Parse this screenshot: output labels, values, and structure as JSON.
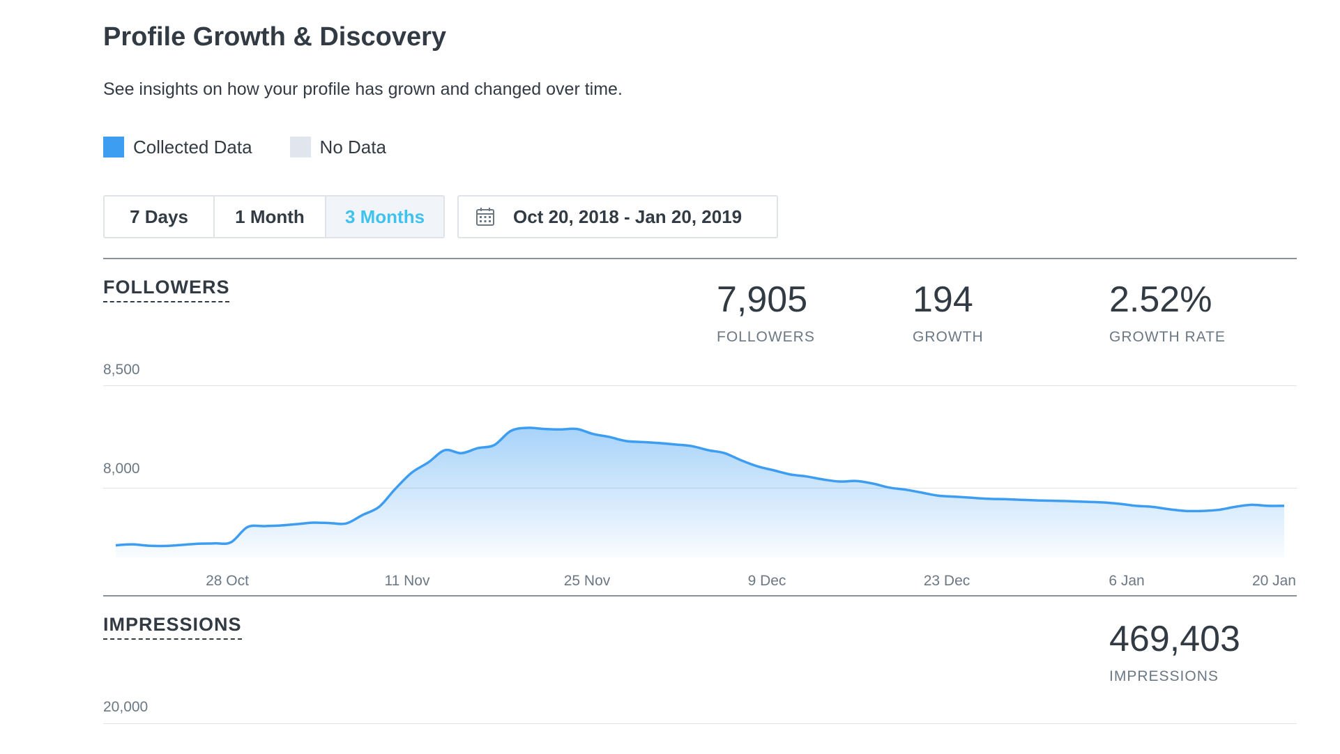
{
  "header": {
    "title": "Profile Growth & Discovery",
    "subtitle": "See insights on how your profile has grown and changed over time."
  },
  "legend": [
    {
      "label": "Collected Data",
      "color": "#3d9df1"
    },
    {
      "label": "No Data",
      "color": "#e1e6ee"
    }
  ],
  "range_buttons": [
    {
      "label": "7 Days",
      "active": false
    },
    {
      "label": "1 Month",
      "active": false
    },
    {
      "label": "3 Months",
      "active": true
    }
  ],
  "date_picker": {
    "icon": "calendar-icon",
    "label": "Oct 20, 2018 - Jan 20, 2019"
  },
  "followers": {
    "section_label": "FOLLOWERS",
    "stats": [
      {
        "value": "7,905",
        "label": "FOLLOWERS"
      },
      {
        "value": "194",
        "label": "GROWTH"
      },
      {
        "value": "2.52%",
        "label": "GROWTH RATE"
      }
    ],
    "y_ticks": [
      "8,500",
      "8,000"
    ]
  },
  "impressions": {
    "section_label": "IMPRESSIONS",
    "stats": [
      {
        "value": "469,403",
        "label": "IMPRESSIONS"
      }
    ],
    "y_ticks": [
      "20,000"
    ]
  },
  "colors": {
    "accent": "#3fc3ee",
    "line": "#3d9df1",
    "text": "#323b43",
    "muted": "#6b7884"
  },
  "chart_data": {
    "type": "area",
    "xlabel": "",
    "ylabel": "",
    "ylim": [
      7650,
      8500
    ],
    "x_ticks": [
      "28 Oct",
      "11 Nov",
      "25 Nov",
      "9 Dec",
      "23 Dec",
      "6 Jan",
      "20 Jan"
    ],
    "series": [
      {
        "values": [
          7710,
          7715,
          7708,
          7707,
          7712,
          7718,
          7720,
          7725,
          7800,
          7805,
          7808,
          7815,
          7822,
          7820,
          7818,
          7860,
          7900,
          7990,
          8070,
          8120,
          8180,
          8165,
          8190,
          8205,
          8275,
          8290,
          8285,
          8282,
          8285,
          8260,
          8245,
          8225,
          8220,
          8215,
          8208,
          8200,
          8180,
          8165,
          8130,
          8100,
          8080,
          8060,
          8050,
          8035,
          8025,
          8028,
          8015,
          7995,
          7985,
          7970,
          7955,
          7950,
          7945,
          7940,
          7938,
          7935,
          7932,
          7930,
          7928,
          7925,
          7922,
          7915,
          7905,
          7900,
          7888,
          7880,
          7880,
          7885,
          7900,
          7910,
          7905,
          7905
        ]
      }
    ]
  }
}
